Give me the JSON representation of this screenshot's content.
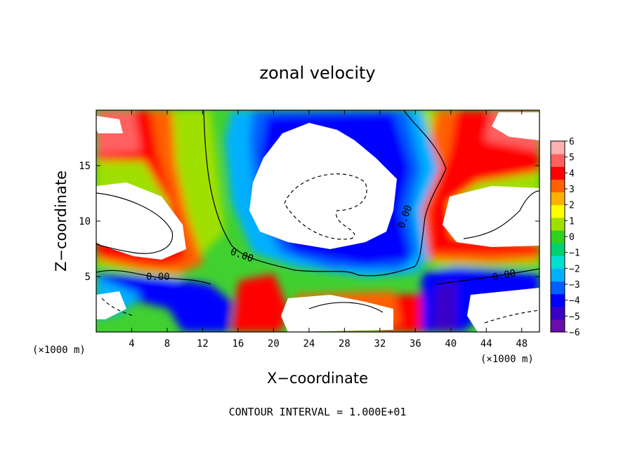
{
  "chart_data": {
    "type": "heatmap",
    "title": "zonal velocity",
    "xlabel": "X−coordinate",
    "ylabel": "Z−coordinate",
    "x_unit_left": "(×1000 m)",
    "x_unit_right": "(×1000 m)",
    "xlim": [
      0,
      50
    ],
    "ylim": [
      0,
      20
    ],
    "x_ticks": [
      "4",
      "8",
      "12",
      "16",
      "20",
      "24",
      "28",
      "32",
      "36",
      "40",
      "44",
      "48"
    ],
    "y_ticks": [
      "5",
      "10",
      "15"
    ],
    "colorbar": {
      "min": -6,
      "max": 6,
      "tick_labels": [
        "6",
        "5",
        "4",
        "3",
        "2",
        "1",
        "0",
        "−1",
        "−2",
        "−3",
        "−4",
        "−5",
        "−6"
      ],
      "colors": [
        "#6a0dad",
        "#3a00c8",
        "#0000ff",
        "#0060ff",
        "#00b0ff",
        "#00e0d0",
        "#00d070",
        "#30d020",
        "#a0e000",
        "#ffff00",
        "#ffb000",
        "#ff6000",
        "#ff0000",
        "#ff6060",
        "#ffb0b0"
      ]
    },
    "contour_labels": [
      "0.00",
      "0.00",
      "0.00",
      "0.00"
    ],
    "footer": "CONTOUR INTERVAL = 1.000E+01"
  }
}
